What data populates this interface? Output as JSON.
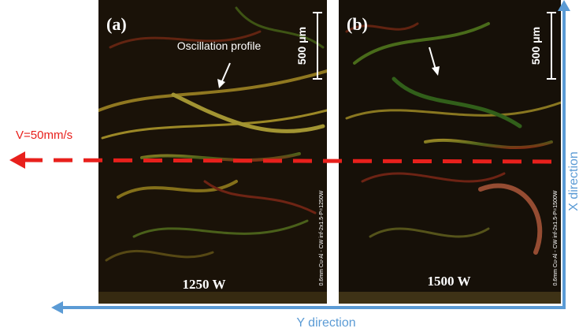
{
  "panels": [
    {
      "label": "(a)",
      "annotation": "Oscillation profile",
      "scale_bar": "500 μm",
      "power": "1250 W",
      "sample_note": "0.6mm Cu-Al - CW inf-2x1.5-P=1250W"
    },
    {
      "label": "(b)",
      "scale_bar": "500 μm",
      "power": "1500 W",
      "sample_note": "0.6mm Cu-Al - CW inf-2x1.5-P=1500W"
    }
  ],
  "velocity": "V=50mm/s",
  "x_axis": "Y direction",
  "y_axis": "X direction"
}
